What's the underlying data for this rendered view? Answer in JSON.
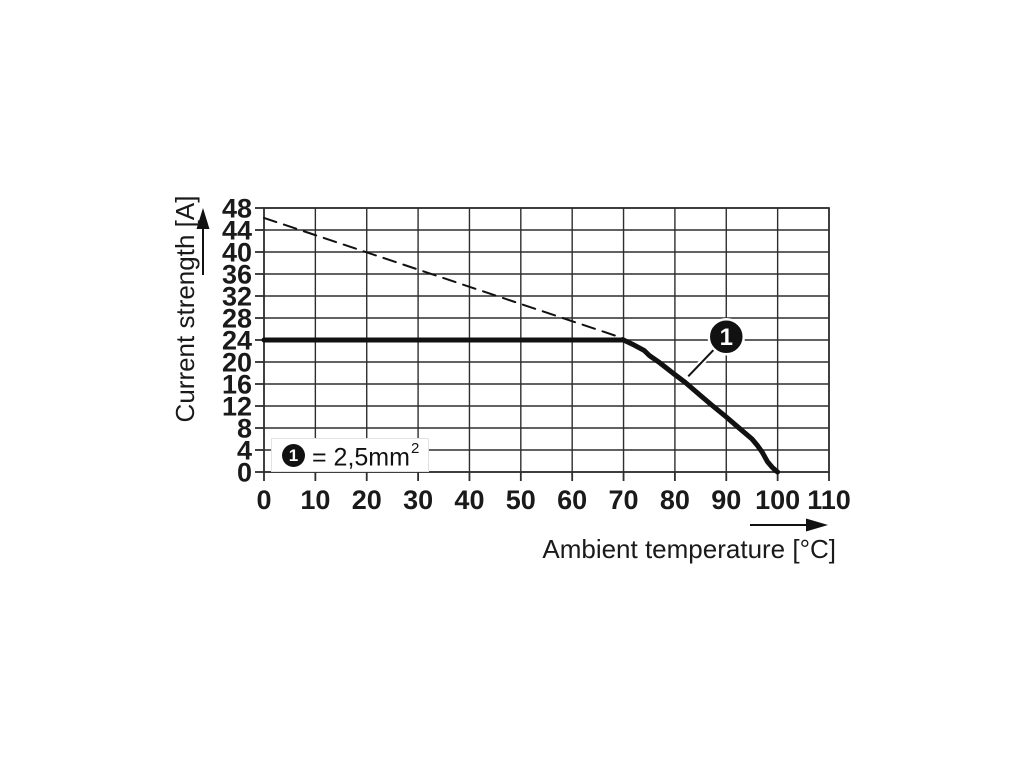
{
  "chart_data": {
    "type": "line",
    "xlabel": "Ambient temperature [°C]",
    "ylabel": "Current strength [A]",
    "xlim": [
      0,
      110
    ],
    "ylim": [
      0,
      48
    ],
    "xticks": [
      0,
      10,
      20,
      30,
      40,
      50,
      60,
      70,
      80,
      90,
      100,
      110
    ],
    "yticks": [
      0,
      4,
      8,
      12,
      16,
      20,
      24,
      28,
      32,
      36,
      40,
      44,
      48
    ],
    "grid": true,
    "legend_position": "inside-bottom-left",
    "series": [
      {
        "style": "solid",
        "points": [
          [
            0,
            24
          ],
          [
            70,
            24
          ],
          [
            72,
            23.1
          ],
          [
            74,
            22.1
          ],
          [
            75,
            21.2
          ],
          [
            77,
            19.9
          ],
          [
            80,
            17.7
          ],
          [
            82,
            16.3
          ],
          [
            85,
            13.9
          ],
          [
            87,
            12.3
          ],
          [
            90,
            10
          ],
          [
            92,
            8.4
          ],
          [
            95,
            6
          ],
          [
            96,
            4.9
          ],
          [
            97,
            3.6
          ],
          [
            98,
            1.9
          ],
          [
            99,
            0.8
          ],
          [
            99.6,
            0.3
          ],
          [
            100,
            0
          ]
        ]
      },
      {
        "style": "dashed",
        "points": [
          [
            0,
            46.2
          ],
          [
            70,
            24.3
          ]
        ]
      }
    ],
    "callout": {
      "label": "1",
      "center": [
        90,
        24.6
      ],
      "attach": [
        82.6,
        17.4
      ]
    },
    "legend": {
      "marker": "1",
      "text": "= 2,5mm",
      "sup": "2"
    }
  },
  "colors": {
    "ink": "#111111",
    "grid": "#2e2e2e",
    "text": "#1a1a1a",
    "background": "#ffffff",
    "callout_fill": "#111111",
    "callout_text": "#ffffff"
  }
}
